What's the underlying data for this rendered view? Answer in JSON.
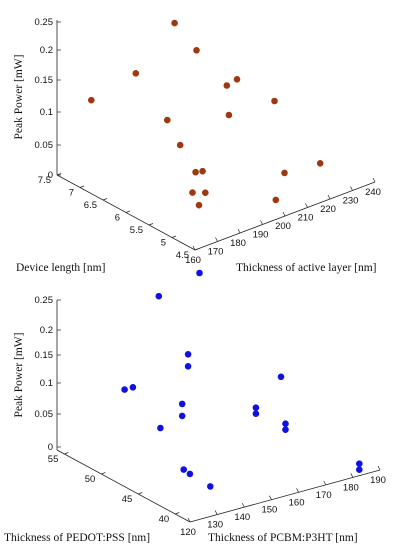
{
  "chart_data": [
    {
      "type": "scatter",
      "title": "",
      "zlabel": "Peak Power [mW]",
      "depth_label": "Device length [nm]",
      "width_label": "Thickness of active layer [nm]",
      "z_ticks": [
        "0",
        "0.05",
        "0.1",
        "0.15",
        "0.2",
        "0.25"
      ],
      "depth_ticks": [
        "4.5",
        "5",
        "5.5",
        "6",
        "6.5",
        "7",
        "7.5"
      ],
      "width_ticks": [
        "160",
        "170",
        "180",
        "190",
        "200",
        "210",
        "220",
        "230",
        "240"
      ],
      "marker_color": "#a0380f",
      "points": [
        {
          "device_length": 6.9,
          "active_layer": 205,
          "power": 0.28
        },
        {
          "device_length": 6.9,
          "active_layer": 200,
          "power": 0.24
        },
        {
          "device_length": 5.2,
          "active_layer": 162,
          "power": 0.2
        },
        {
          "device_length": 7.5,
          "active_layer": 195,
          "power": 0.13
        },
        {
          "device_length": 7.5,
          "active_layer": 222,
          "power": 0.13
        },
        {
          "device_length": 6.4,
          "active_layer": 213,
          "power": 0.13
        },
        {
          "device_length": 6.0,
          "active_layer": 226,
          "power": 0.1
        },
        {
          "device_length": 6.6,
          "active_layer": 218,
          "power": 0.06
        },
        {
          "device_length": 7.0,
          "active_layer": 165,
          "power": 0.15
        },
        {
          "device_length": 7.5,
          "active_layer": 240,
          "power": 0.05
        },
        {
          "device_length": 5.5,
          "active_layer": 185,
          "power": 0.02
        },
        {
          "device_length": 5.8,
          "active_layer": 180,
          "power": 0.1
        },
        {
          "device_length": 6.2,
          "active_layer": 195,
          "power": 0.01
        },
        {
          "device_length": 5.0,
          "active_layer": 172,
          "power": 0.04
        },
        {
          "device_length": 5.9,
          "active_layer": 192,
          "power": 0.03
        },
        {
          "device_length": 5.0,
          "active_layer": 210,
          "power": 0.04
        },
        {
          "device_length": 5.3,
          "active_layer": 232,
          "power": 0.01
        },
        {
          "device_length": 4.7,
          "active_layer": 200,
          "power": 0.02
        },
        {
          "device_length": 4.7,
          "active_layer": 163,
          "power": 0.09
        }
      ]
    },
    {
      "type": "scatter",
      "title": "",
      "zlabel": "Peak Power [mW]",
      "depth_label": "Thickness of PEDOT:PSS [nm]",
      "width_label": "Thickness of PCBM:P3HT [nm]",
      "z_ticks": [
        "0",
        "0.05",
        "0.1",
        "0.15",
        "0.2",
        "0.25"
      ],
      "depth_ticks": [
        "40",
        "45",
        "50",
        "55"
      ],
      "width_ticks": [
        "120",
        "130",
        "140",
        "150",
        "160",
        "170",
        "180",
        "190"
      ],
      "marker_color": "#1010e0",
      "points": [
        {
          "pedot_pss": 56,
          "pcbm_p3ht": 167,
          "power": 0.23
        },
        {
          "pedot_pss": 52,
          "pcbm_p3ht": 133,
          "power": 0.25
        },
        {
          "pedot_pss": 50,
          "pcbm_p3ht": 140,
          "power": 0.16
        },
        {
          "pedot_pss": 50,
          "pcbm_p3ht": 140,
          "power": 0.14
        },
        {
          "pedot_pss": 53,
          "pcbm_p3ht": 120,
          "power": 0.1
        },
        {
          "pedot_pss": 53,
          "pcbm_p3ht": 124,
          "power": 0.1
        },
        {
          "pedot_pss": 48,
          "pcbm_p3ht": 130,
          "power": 0.1
        },
        {
          "pedot_pss": 48,
          "pcbm_p3ht": 130,
          "power": 0.08
        },
        {
          "pedot_pss": 50,
          "pcbm_p3ht": 185,
          "power": 0.08
        },
        {
          "pedot_pss": 42,
          "pcbm_p3ht": 98,
          "power": 0.13
        },
        {
          "pedot_pss": 45,
          "pcbm_p3ht": 120,
          "power": 0.02
        },
        {
          "pedot_pss": 45,
          "pcbm_p3ht": 123,
          "power": 0.01
        },
        {
          "pedot_pss": 52,
          "pcbm_p3ht": 180,
          "power": 0.01
        },
        {
          "pedot_pss": 52,
          "pcbm_p3ht": 180,
          "power": 0.02
        },
        {
          "pedot_pss": 48,
          "pcbm_p3ht": 180,
          "power": 0.01
        },
        {
          "pedot_pss": 48,
          "pcbm_p3ht": 180,
          "power": 0.02
        },
        {
          "pedot_pss": 38,
          "pcbm_p3ht": 180,
          "power": 0.01
        },
        {
          "pedot_pss": 38,
          "pcbm_p3ht": 180,
          "power": 0.02
        },
        {
          "pedot_pss": 40,
          "pcbm_p3ht": 115,
          "power": 0.03
        }
      ]
    }
  ]
}
